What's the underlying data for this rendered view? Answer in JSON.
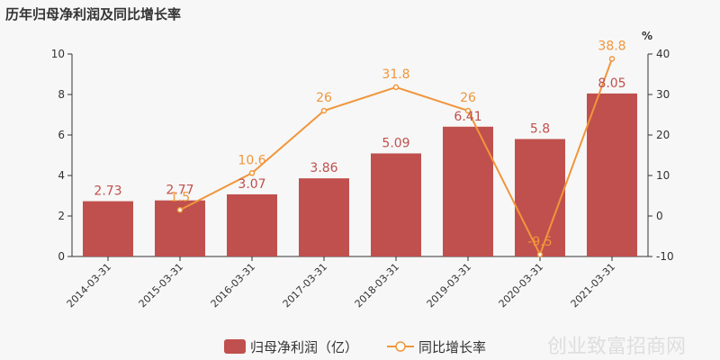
{
  "chart_data": {
    "type": "bar",
    "title": "历年归母净利润及同比增长率",
    "categories": [
      "2014-03-31",
      "2015-03-31",
      "2016-03-31",
      "2017-03-31",
      "2018-03-31",
      "2019-03-31",
      "2020-03-31",
      "2021-03-31"
    ],
    "series": [
      {
        "name": "归母净利润（亿）",
        "type": "bar",
        "axis": "left",
        "color": "#c0504d",
        "values": [
          2.73,
          2.77,
          3.07,
          3.86,
          5.09,
          6.41,
          5.8,
          8.05
        ],
        "labels": [
          "2.73",
          "2.77",
          "3.07",
          "3.86",
          "5.09",
          "6.41",
          "5.8",
          "8.05"
        ]
      },
      {
        "name": "同比增长率",
        "type": "line",
        "axis": "right",
        "color": "#f0963c",
        "values": [
          null,
          1.5,
          10.6,
          26,
          31.8,
          26,
          -9.5,
          38.8
        ],
        "labels": [
          null,
          "1.5",
          "10.6",
          "26",
          "31.8",
          "26",
          "-9.5",
          "38.8"
        ]
      }
    ],
    "y_left": {
      "range": [
        0,
        10
      ],
      "ticks": [
        "0",
        "2",
        "4",
        "6",
        "8",
        "10"
      ]
    },
    "y_right": {
      "unit": "%",
      "range": [
        -10,
        40
      ],
      "ticks": [
        "-10",
        "0",
        "10",
        "20",
        "30",
        "40"
      ]
    },
    "grid": false,
    "legend": "bottom-center"
  },
  "watermark": "创业致富招商网"
}
